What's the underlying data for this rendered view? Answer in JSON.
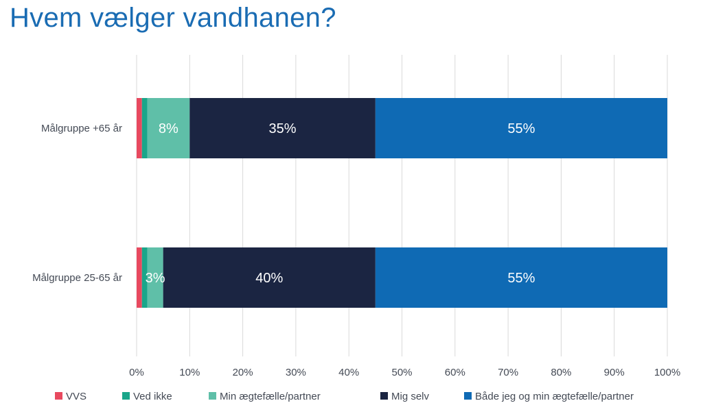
{
  "chart_data": {
    "type": "bar",
    "orientation": "horizontal",
    "stacked": true,
    "title": "Hvem vælger vandhanen?",
    "categories": [
      "Målgruppe +65 år",
      "Målgruppe 25-65 år"
    ],
    "series": [
      {
        "name": "VVS",
        "color": "#e8495f",
        "values": [
          1,
          1
        ],
        "labels": [
          "",
          ""
        ]
      },
      {
        "name": "Ved ikke",
        "color": "#1aa68a",
        "values": [
          1,
          1
        ],
        "labels": [
          "",
          ""
        ]
      },
      {
        "name": "Min ægtefælle/partner",
        "color": "#5fbfa8",
        "values": [
          8,
          3
        ],
        "labels": [
          "8%",
          "3%"
        ]
      },
      {
        "name": "Mig selv",
        "color": "#1b2542",
        "values": [
          35,
          40
        ],
        "labels": [
          "35%",
          "40%"
        ]
      },
      {
        "name": "Både jeg og min ægtefælle/partner",
        "color": "#0f6ab4",
        "values": [
          55,
          55
        ],
        "labels": [
          "55%",
          "55%"
        ]
      }
    ],
    "xlim": [
      0,
      100
    ],
    "xticks": [
      "0%",
      "10%",
      "20%",
      "30%",
      "40%",
      "50%",
      "60%",
      "70%",
      "80%",
      "90%",
      "100%"
    ],
    "grid": true,
    "legend_position": "bottom"
  }
}
